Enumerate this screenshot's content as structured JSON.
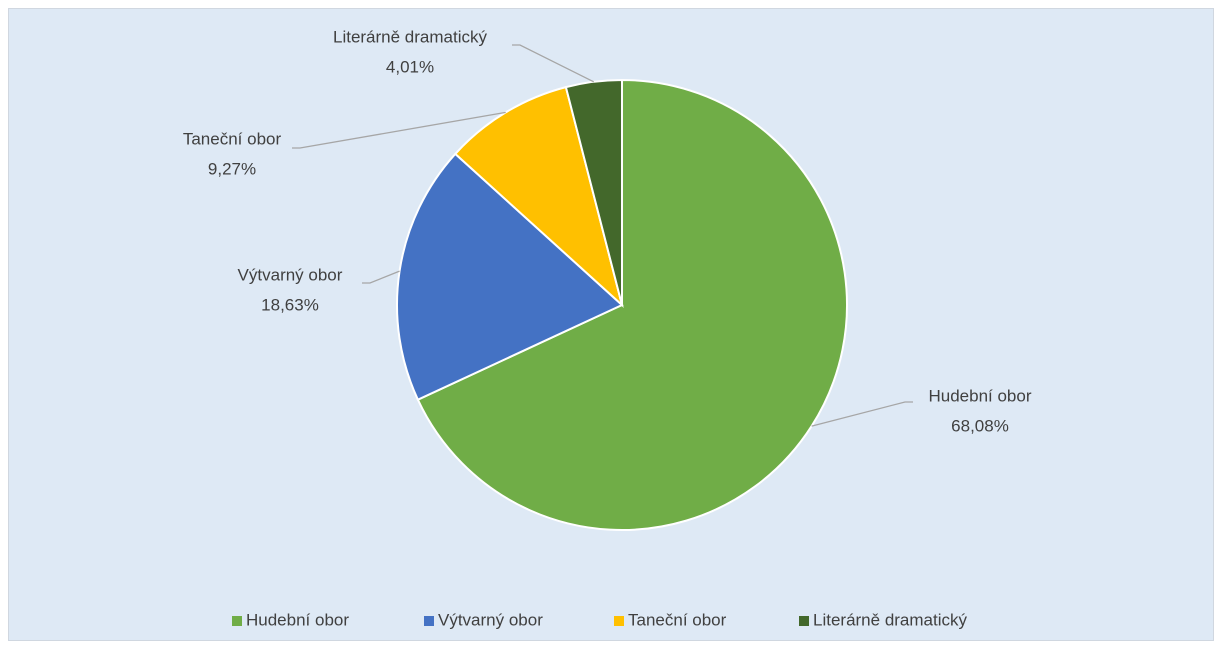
{
  "chart_data": {
    "type": "pie",
    "categories": [
      "Hudební obor",
      "Výtvarný obor",
      "Taneční obor",
      "Literárně dramatický"
    ],
    "values": [
      68.08,
      18.63,
      9.27,
      4.01
    ],
    "value_labels": [
      "68,08%",
      "18,63%",
      "9,27%",
      "4,01%"
    ],
    "colors": [
      "#70ad47",
      "#4472c4",
      "#ffc000",
      "#43682b"
    ],
    "legend": "bottom"
  }
}
